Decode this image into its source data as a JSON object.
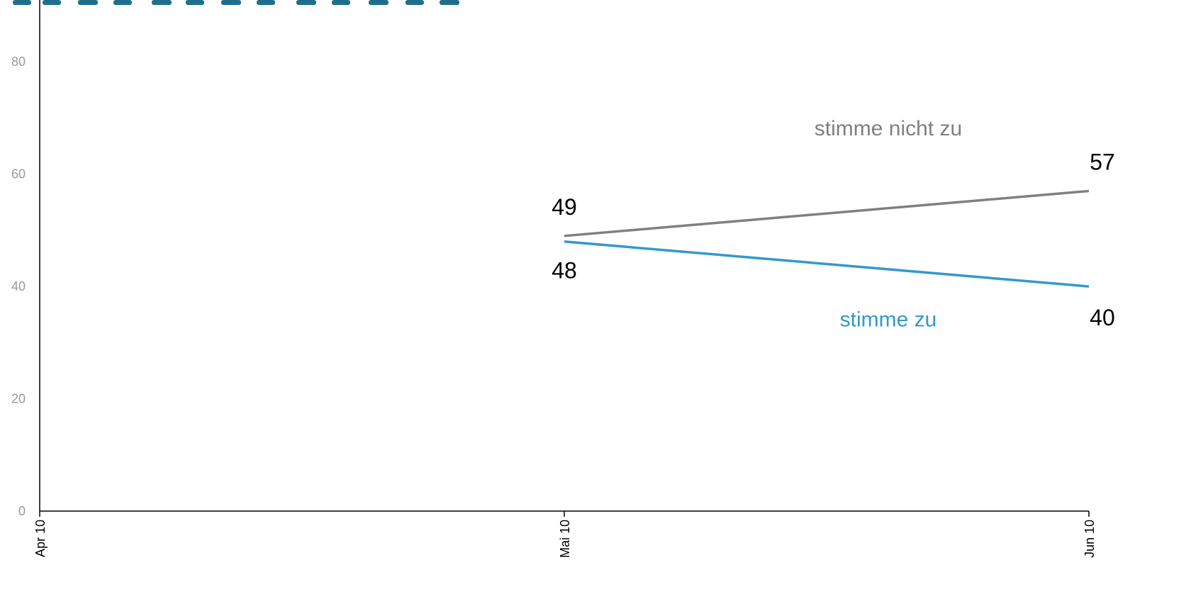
{
  "colors": {
    "title": "#1f6e8c",
    "disagree": "#808080",
    "agree": "#3399cc",
    "axis": "#000000",
    "tick_label": "#999999",
    "value_label": "#000000"
  },
  "chart_data": {
    "type": "line",
    "categories": [
      "Apr 10",
      "Mai 10",
      "Jun 10"
    ],
    "ylim": [
      0,
      90
    ],
    "yticks": [
      0,
      20,
      40,
      60,
      80
    ],
    "grid": false,
    "series": [
      {
        "name": "stimme nicht zu",
        "color_key": "disagree",
        "values": [
          null,
          49,
          57
        ],
        "label_position": "above"
      },
      {
        "name": "stimme zu",
        "color_key": "agree",
        "values": [
          null,
          48,
          40
        ],
        "label_position": "below"
      }
    ]
  }
}
